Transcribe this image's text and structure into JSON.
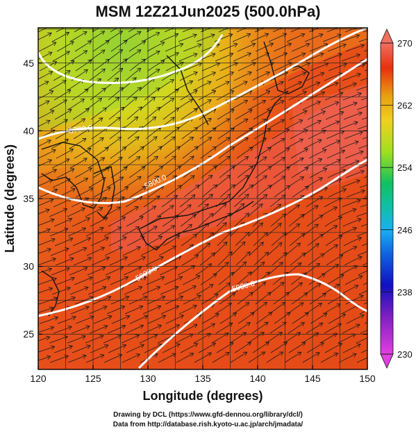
{
  "title": "MSM 12Z21Jun2025 (500.0hPa)",
  "x_axis": {
    "label": "Longitude (degrees)",
    "range": [
      120,
      150
    ],
    "ticks": [
      120,
      125,
      130,
      135,
      140,
      145,
      150
    ]
  },
  "y_axis": {
    "label": "Latitude  (degrees)",
    "range": [
      22.4,
      47.6
    ],
    "ticks": [
      25,
      30,
      35,
      40,
      45
    ]
  },
  "colorbar": {
    "ticks": [
      230,
      238,
      246,
      254,
      262,
      270
    ],
    "colors": [
      "#e040e0",
      "#1010c0",
      "#1ab0f0",
      "#10c060",
      "#a0e020",
      "#e8a010",
      "#e83010",
      "#f08070"
    ]
  },
  "contours": [
    {
      "label": "5700.0"
    },
    {
      "label": "5800.0"
    },
    {
      "label": "5900.0"
    },
    {
      "label": "5900.0"
    },
    {
      "label": "5800.0"
    }
  ],
  "credits": {
    "line1": "Drawing by DCL (https://www.gfd-dennou.org/library/dcl/)",
    "line2": "Data from http://database.rish.kyoto-u.ac.jp/arch/jmadata/"
  }
}
